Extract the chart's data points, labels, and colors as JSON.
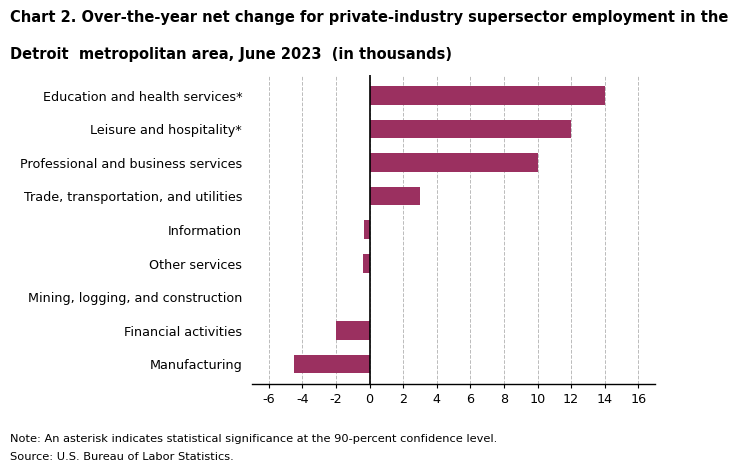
{
  "categories": [
    "Manufacturing",
    "Financial activities",
    "Mining, logging, and construction",
    "Other services",
    "Information",
    "Trade, transportation, and utilities",
    "Professional and business services",
    "Leisure and hospitality*",
    "Education and health services*"
  ],
  "values": [
    -4.5,
    -2.0,
    0.0,
    -0.4,
    -0.3,
    3.0,
    10.0,
    12.0,
    14.0
  ],
  "bar_color": "#9b3060",
  "title_line1": "Chart 2. Over-the-year net change for private-industry supersector employment in the",
  "title_line2": "Detroit  metropolitan area, June 2023  (in thousands)",
  "title_fontsize": 10.5,
  "xlim": [
    -7,
    17
  ],
  "xticks": [
    -6,
    -4,
    -2,
    0,
    2,
    4,
    6,
    8,
    10,
    12,
    14,
    16
  ],
  "grid_color": "#bbbbbb",
  "background_color": "#ffffff",
  "note_line1": "Note: An asterisk indicates statistical significance at the 90-percent confidence level.",
  "note_line2": "Source: U.S. Bureau of Labor Statistics.",
  "bar_height": 0.55,
  "label_fontsize": 9.2,
  "tick_fontsize": 9.2
}
